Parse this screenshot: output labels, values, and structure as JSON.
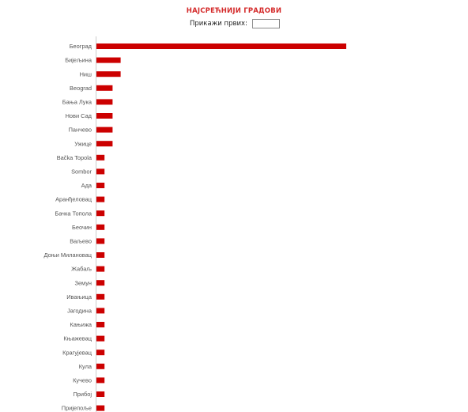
{
  "header": {
    "title": "НАЈСРЕЋНИЈИ ГРАДОВИ",
    "filter_label": "Прикажи првих:",
    "filter_value": ""
  },
  "colors": {
    "title": "#d42a2a",
    "bar": "#cc0000",
    "axis": "#cccccc"
  },
  "chart_data": {
    "type": "bar",
    "orientation": "horizontal",
    "title": "НАЈСРЕЋНИЈИ ГРАДОВИ",
    "xlabel": "",
    "ylabel": "",
    "categories": [
      "Београд",
      "Бијељина",
      "Ниш",
      "Beograd",
      "Бања Лука",
      "Нови Сад",
      "Панчево",
      "Ужице",
      "Bačka Topola",
      "Sombor",
      "Ада",
      "Аранђеловац",
      "Бачка Топола",
      "Беочин",
      "Ваљево",
      "Доњи Милановац",
      "Жабаљ",
      "Земун",
      "Ивањица",
      "Јагодина",
      "Кањижа",
      "Књажевац",
      "Крагујевац",
      "Кула",
      "Кучево",
      "Прибој",
      "Пријепоље"
    ],
    "values": [
      31,
      3,
      3,
      2,
      2,
      2,
      2,
      2,
      1,
      1,
      1,
      1,
      1,
      1,
      1,
      1,
      1,
      1,
      1,
      1,
      1,
      1,
      1,
      1,
      1,
      1,
      1
    ],
    "xlim": [
      0,
      31
    ],
    "grid": false,
    "legend": "none"
  }
}
